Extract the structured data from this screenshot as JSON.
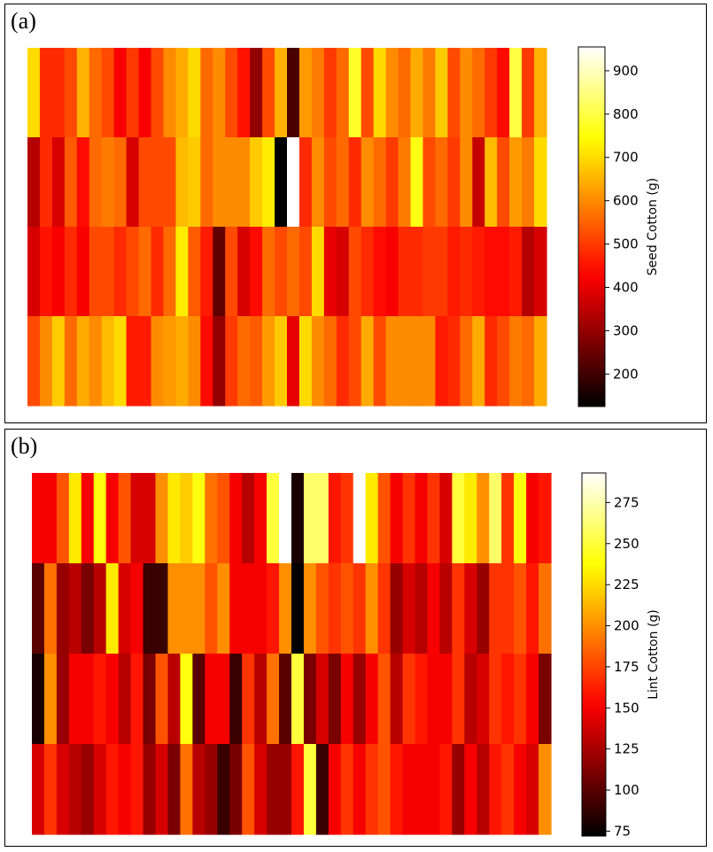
{
  "panels": [
    {
      "label": "(a)",
      "chart_data": {
        "type": "heatmap",
        "title": "",
        "xlabel": "",
        "ylabel": "",
        "colormap": "hot",
        "colorbar_label": "Seed Cotton (g)",
        "vmin": 125,
        "vmax": 955,
        "colorbar_ticks": [
          200,
          300,
          400,
          500,
          600,
          700,
          800,
          900
        ],
        "grid": false,
        "rows": 4,
        "cols": 42,
        "values": [
          [
            700,
            480,
            480,
            520,
            650,
            560,
            520,
            420,
            500,
            420,
            520,
            600,
            640,
            700,
            560,
            600,
            520,
            450,
            300,
            520,
            650,
            210,
            620,
            580,
            500,
            560,
            780,
            520,
            700,
            600,
            560,
            640,
            580,
            680,
            520,
            600,
            560,
            500,
            440,
            800,
            500,
            650
          ],
          [
            340,
            480,
            380,
            540,
            440,
            560,
            580,
            560,
            380,
            520,
            520,
            520,
            660,
            680,
            560,
            600,
            600,
            600,
            680,
            720,
            125,
            955,
            480,
            600,
            520,
            560,
            480,
            600,
            560,
            500,
            580,
            760,
            520,
            560,
            500,
            600,
            360,
            660,
            520,
            620,
            580,
            700
          ],
          [
            380,
            450,
            420,
            480,
            420,
            520,
            520,
            480,
            520,
            560,
            480,
            560,
            720,
            540,
            460,
            240,
            520,
            380,
            440,
            560,
            520,
            560,
            520,
            700,
            400,
            380,
            520,
            480,
            440,
            420,
            480,
            480,
            500,
            500,
            460,
            480,
            460,
            440,
            440,
            460,
            340,
            380
          ],
          [
            520,
            600,
            680,
            560,
            640,
            600,
            660,
            700,
            460,
            460,
            600,
            620,
            640,
            600,
            440,
            300,
            500,
            560,
            540,
            620,
            680,
            400,
            700,
            600,
            560,
            480,
            520,
            640,
            520,
            600,
            600,
            600,
            600,
            460,
            480,
            560,
            640,
            480,
            520,
            580,
            560,
            640
          ]
        ]
      }
    },
    {
      "label": "(b)",
      "chart_data": {
        "type": "heatmap",
        "title": "",
        "xlabel": "",
        "ylabel": "",
        "colormap": "hot",
        "colorbar_label": "Lint Cotton (g)",
        "vmin": 72,
        "vmax": 293,
        "colorbar_ticks": [
          75,
          100,
          125,
          150,
          175,
          200,
          225,
          250,
          275
        ],
        "grid": false,
        "rows": 4,
        "cols": 42,
        "values": [
          [
            150,
            150,
            180,
            230,
            150,
            240,
            150,
            180,
            140,
            140,
            200,
            230,
            220,
            240,
            190,
            180,
            150,
            130,
            150,
            250,
            293,
            80,
            260,
            260,
            160,
            170,
            293,
            230,
            180,
            150,
            170,
            150,
            170,
            140,
            250,
            230,
            200,
            260,
            170,
            240,
            150,
            160
          ],
          [
            100,
            190,
            120,
            130,
            110,
            130,
            230,
            140,
            150,
            90,
            90,
            200,
            200,
            200,
            180,
            200,
            150,
            150,
            150,
            160,
            200,
            72,
            200,
            180,
            170,
            180,
            170,
            200,
            170,
            120,
            140,
            130,
            150,
            130,
            170,
            140,
            120,
            170,
            170,
            180,
            160,
            190
          ],
          [
            80,
            200,
            120,
            150,
            150,
            160,
            150,
            130,
            160,
            110,
            180,
            130,
            240,
            100,
            150,
            150,
            90,
            170,
            130,
            190,
            100,
            250,
            110,
            140,
            110,
            150,
            120,
            150,
            180,
            130,
            170,
            160,
            150,
            150,
            170,
            130,
            140,
            170,
            160,
            170,
            150,
            110
          ],
          [
            140,
            170,
            140,
            130,
            120,
            140,
            160,
            150,
            160,
            120,
            140,
            110,
            190,
            130,
            120,
            90,
            110,
            180,
            140,
            120,
            120,
            160,
            250,
            90,
            150,
            170,
            150,
            170,
            180,
            160,
            150,
            150,
            150,
            160,
            120,
            150,
            130,
            160,
            170,
            150,
            140,
            200
          ]
        ]
      }
    }
  ]
}
